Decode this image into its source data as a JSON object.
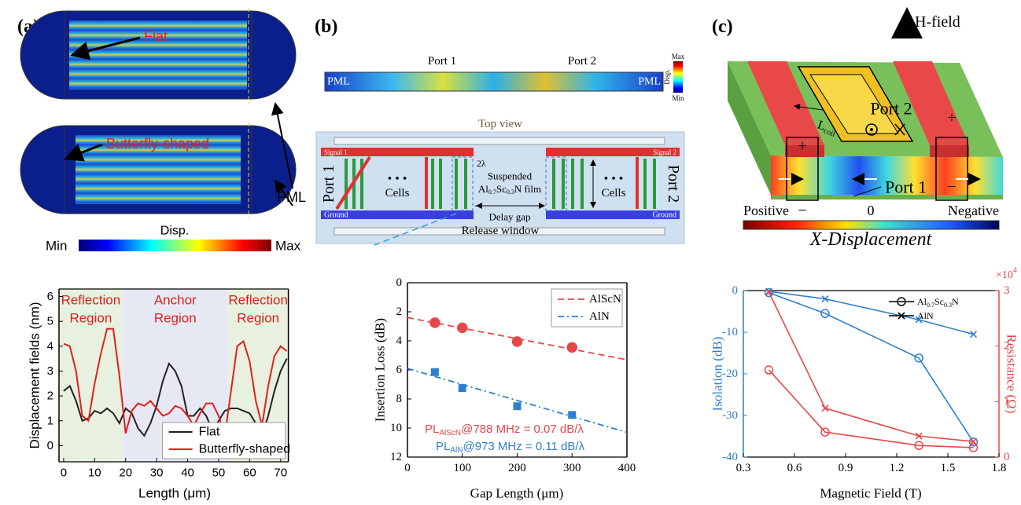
{
  "panel_labels": [
    "(a)",
    "(b)",
    "(c)"
  ],
  "diagram_a": {
    "flat": "Flat",
    "butterfly": "Butterfly-shaped",
    "pml": "PML",
    "colorbar": {
      "min": "Min",
      "title": "Disp.",
      "max": "Max"
    }
  },
  "diagram_b": {
    "port1": "Port 1",
    "port2": "Port 2",
    "pml_left": "PML",
    "pml_right": "PML",
    "colorbar": {
      "max": "Max",
      "title": "Disp.",
      "min": "Min"
    },
    "top_view": "Top view",
    "signal1": "Signal 1",
    "signal2": "Signal 2",
    "port1_side": "Port 1",
    "port2_side": "Port 2",
    "dots_left": "• • •",
    "dots_right": "• • •",
    "cells_left": "Cells",
    "cells_right": "Cells",
    "wavelength": "2λ",
    "film": {
      "line1": "Suspended",
      "line2": [
        "Al",
        "0.7",
        "Sc",
        "0.3",
        "N film"
      ]
    },
    "delay_gap": "Delay gap",
    "ground_left": "Ground",
    "ground_right": "Ground",
    "release_window": "Release window"
  },
  "diagram_c": {
    "h_field": "H-field",
    "coil": [
      "L",
      "coil"
    ],
    "port2": "Port 2",
    "port1": "Port 1",
    "plus_left": "+",
    "plus_right": "+",
    "minus_left": "−",
    "minus_right": "−",
    "colorbar": {
      "positive": "Positive",
      "zero": "0",
      "negative": "Negative",
      "title": "X-Displacement"
    }
  },
  "chart_data": [
    {
      "type": "line",
      "xlabel": "Length (μm)",
      "ylabel": "Displacement fields (nm)",
      "xlim": [
        -1.5,
        72.5
      ],
      "xticks": [
        0,
        10,
        20,
        30,
        40,
        50,
        60,
        70
      ],
      "ylim": [
        -0.65,
        6.3
      ],
      "yticks": [
        0,
        1,
        2,
        3,
        4,
        5,
        6
      ],
      "regions": [
        {
          "x": [
            -1.5,
            19
          ],
          "color": "#e8f0df",
          "label": [
            "Reflection",
            "Region"
          ]
        },
        {
          "x": [
            19,
            53
          ],
          "color": "#e6e9f4",
          "label": [
            "Anchor",
            "Region"
          ]
        },
        {
          "x": [
            53,
            72.5
          ],
          "color": "#e8f0df",
          "label": [
            "Reflection",
            "Region"
          ]
        }
      ],
      "legend": "lower right",
      "x": [
        0,
        2,
        4,
        6,
        8,
        10,
        12,
        14,
        16,
        18,
        20,
        22,
        24,
        26,
        28,
        30,
        32,
        34,
        36,
        38,
        40,
        42,
        44,
        46,
        48,
        50,
        52,
        54,
        56,
        58,
        60,
        62,
        64,
        66,
        68,
        70,
        72
      ],
      "series": [
        {
          "name": "Flat",
          "color": "#222222",
          "values": [
            2.2,
            2.4,
            1.8,
            1.0,
            1.1,
            1.4,
            1.3,
            1.5,
            1.3,
            0.9,
            1.5,
            1.3,
            0.7,
            0.4,
            0.9,
            1.6,
            2.6,
            3.3,
            3.0,
            2.4,
            1.2,
            1.2,
            1.5,
            1.2,
            0.6,
            1.0,
            1.4,
            1.5,
            1.5,
            1.4,
            1.3,
            0.9,
            0.4,
            1.2,
            2.2,
            3.0,
            3.5
          ]
        },
        {
          "name": "Butterfly-shaped",
          "color": "#e0201b",
          "values": [
            4.1,
            4.0,
            3.0,
            1.2,
            1.0,
            2.5,
            3.7,
            4.7,
            4.7,
            2.8,
            0.5,
            1.4,
            1.7,
            1.6,
            1.8,
            1.5,
            1.2,
            1.3,
            1.6,
            1.5,
            1.2,
            0.8,
            1.3,
            1.7,
            1.7,
            1.2,
            0.4,
            2.2,
            4.0,
            4.2,
            3.4,
            1.8,
            0.8,
            2.4,
            3.6,
            4.0,
            3.8
          ]
        }
      ]
    },
    {
      "type": "scatter",
      "xlabel": "Gap Length (μm)",
      "ylabel": "Insertion Loss (dB)",
      "xlim": [
        0,
        400
      ],
      "xticks": [
        0,
        100,
        200,
        300,
        400
      ],
      "ylim": [
        12,
        0
      ],
      "yticks": [
        0,
        2,
        4,
        6,
        8,
        10,
        12
      ],
      "legend": "upper right",
      "series": [
        {
          "name": "AlScN",
          "color": "#e8474a",
          "marker": "circle",
          "x": [
            50,
            100,
            200,
            300
          ],
          "values": [
            2.75,
            3.1,
            4.05,
            4.45
          ],
          "fit": {
            "x": [
              0,
              400
            ],
            "values": [
              2.4,
              5.3
            ],
            "dash": "8 5"
          }
        },
        {
          "name": "AlN",
          "color": "#2f7fd0",
          "marker": "square",
          "x": [
            50,
            100,
            200,
            300
          ],
          "values": [
            6.15,
            7.25,
            8.5,
            9.1
          ],
          "fit": {
            "x": [
              0,
              400
            ],
            "values": [
              5.9,
              10.3
            ],
            "dash": "8 4 2 4"
          }
        }
      ],
      "annotations": [
        {
          "parts": [
            "PL",
            "AlScN",
            "@788 MHz = 0.07 dB/λ"
          ],
          "color": "#e8474a"
        },
        {
          "parts": [
            "PL",
            "AlN",
            "@973 MHz = 0.11 dB/λ"
          ],
          "color": "#2f7fd0"
        }
      ]
    },
    {
      "type": "line",
      "xlabel": "Magnetic Field (T)",
      "ylabel": "Isolation (dB)",
      "y2label": "Resistance (Ω)",
      "y2_multiplier": [
        "×10",
        "4"
      ],
      "xlim": [
        0.3,
        1.8
      ],
      "xticks": [
        0.3,
        0.6,
        0.9,
        1.2,
        1.5,
        1.8
      ],
      "ylim": [
        -40,
        0
      ],
      "yticks": [
        -40,
        -30,
        -20,
        -10,
        0
      ],
      "y2lim": [
        0,
        3
      ],
      "y2ticks": [
        0,
        1,
        2,
        3
      ],
      "legend": "upper right",
      "ycolor": "#2f7fd0",
      "y2color": "#e8474a",
      "series": [
        {
          "name": [
            "Al",
            "0.7",
            "Sc",
            "0.3",
            "N"
          ],
          "color": "#2f7fd0",
          "marker": "circle",
          "x": [
            0.45,
            0.78,
            1.33,
            1.65
          ],
          "values": [
            -0.5,
            -5.5,
            -16.2,
            -36.4
          ]
        },
        {
          "name": "AlN",
          "color": "#2f7fd0",
          "marker": "cross",
          "x": [
            0.45,
            0.78,
            1.33,
            1.65
          ],
          "values": [
            -0.2,
            -2,
            -7,
            -10.5
          ]
        },
        {
          "color": "#e8474a",
          "marker": "circle",
          "axis": "y2",
          "x": [
            0.45,
            0.78,
            1.33,
            1.65
          ],
          "values": [
            1.57,
            0.45,
            0.21,
            0.17
          ]
        },
        {
          "color": "#e8474a",
          "marker": "cross",
          "axis": "y2",
          "x": [
            0.45,
            0.78,
            1.33,
            1.65
          ],
          "values": [
            2.97,
            0.88,
            0.38,
            0.28
          ]
        }
      ]
    }
  ]
}
